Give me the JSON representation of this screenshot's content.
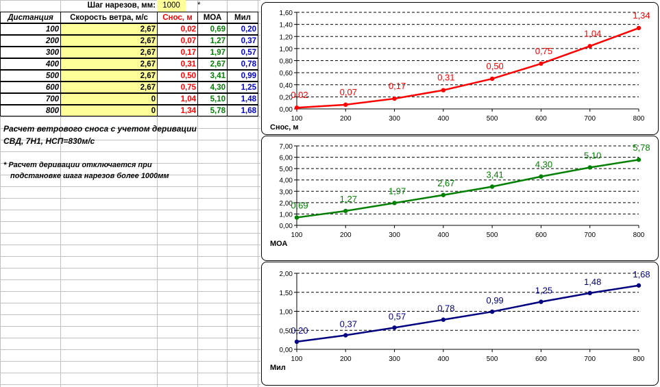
{
  "sheet": {
    "twist_label": "Шаг нарезов, мм:",
    "twist_value": "1000",
    "twist_note_mark": "*",
    "headers": {
      "distance": "Дистанция",
      "wind": "Скорость ветра, м/с",
      "drift": "Снос, м",
      "moa": "МОА",
      "mil": "Мил"
    },
    "rows": [
      {
        "distance": "100",
        "wind": "2,67",
        "drift": "0,02",
        "moa": "0,69",
        "mil": "0,20"
      },
      {
        "distance": "200",
        "wind": "2,67",
        "drift": "0,07",
        "moa": "1,27",
        "mil": "0,37"
      },
      {
        "distance": "300",
        "wind": "2,67",
        "drift": "0,17",
        "moa": "1,97",
        "mil": "0,57"
      },
      {
        "distance": "400",
        "wind": "2,67",
        "drift": "0,31",
        "moa": "2,67",
        "mil": "0,78"
      },
      {
        "distance": "500",
        "wind": "2,67",
        "drift": "0,50",
        "moa": "3,41",
        "mil": "0,99"
      },
      {
        "distance": "600",
        "wind": "2,67",
        "drift": "0,75",
        "moa": "4,30",
        "mil": "1,25"
      },
      {
        "distance": "700",
        "wind": "0",
        "drift": "1,04",
        "moa": "5,10",
        "mil": "1,48"
      },
      {
        "distance": "800",
        "wind": "0",
        "drift": "1,34",
        "moa": "5,78",
        "mil": "1,68"
      }
    ],
    "title_line1": "Расчет ветрового сноса с учетом деривации",
    "title_line2": "СВД, 7Н1, НСП=830м/с",
    "footnote_line1": "* Расчет деривации отключается при",
    "footnote_line2": "подстановке шага нарезов более 1000мм"
  },
  "colors": {
    "drift": "#ff0000",
    "moa": "#008000",
    "mil": "#000080",
    "highlight": "#ffff99"
  },
  "chart_data": [
    {
      "type": "line",
      "x": [
        100,
        200,
        300,
        400,
        500,
        600,
        700,
        800
      ],
      "values": [
        0.02,
        0.07,
        0.17,
        0.31,
        0.5,
        0.75,
        1.04,
        1.34
      ],
      "data_labels": [
        "0,02",
        "0,07",
        "0,17",
        "0,31",
        "0,50",
        "0,75",
        "1,04",
        "1,34"
      ],
      "ylabel": "Снос, м",
      "ylim": [
        0,
        1.6
      ],
      "yticks": [
        0,
        0.2,
        0.4,
        0.6,
        0.8,
        1.0,
        1.2,
        1.4,
        1.6
      ],
      "ytick_labels": [
        "0,00",
        "0,20",
        "0,40",
        "0,60",
        "0,80",
        "1,00",
        "1,20",
        "1,40",
        "1,60"
      ],
      "xtick_labels": [
        "100",
        "200",
        "300",
        "400",
        "500",
        "600",
        "700",
        "800"
      ],
      "grid": true,
      "color": "#ff0000"
    },
    {
      "type": "line",
      "x": [
        100,
        200,
        300,
        400,
        500,
        600,
        700,
        800
      ],
      "values": [
        0.69,
        1.27,
        1.97,
        2.67,
        3.41,
        4.3,
        5.1,
        5.78
      ],
      "data_labels": [
        "0,69",
        "1,27",
        "1,97",
        "2,67",
        "3,41",
        "4,30",
        "5,10",
        "5,78"
      ],
      "ylabel": "МОА",
      "ylim": [
        0,
        7
      ],
      "yticks": [
        0,
        1,
        2,
        3,
        4,
        5,
        6,
        7
      ],
      "ytick_labels": [
        "0,00",
        "1,00",
        "2,00",
        "3,00",
        "4,00",
        "5,00",
        "6,00",
        "7,00"
      ],
      "xtick_labels": [
        "100",
        "200",
        "300",
        "400",
        "500",
        "600",
        "700",
        "800"
      ],
      "grid": true,
      "color": "#008000"
    },
    {
      "type": "line",
      "x": [
        100,
        200,
        300,
        400,
        500,
        600,
        700,
        800
      ],
      "values": [
        0.2,
        0.37,
        0.57,
        0.78,
        0.99,
        1.25,
        1.48,
        1.68
      ],
      "data_labels": [
        "0,20",
        "0,37",
        "0,57",
        "0,78",
        "0,99",
        "1,25",
        "1,48",
        "1,68"
      ],
      "ylabel": "Мил",
      "ylim": [
        0,
        2
      ],
      "yticks": [
        0,
        0.5,
        1.0,
        1.5,
        2.0
      ],
      "ytick_labels": [
        "0,00",
        "0,50",
        "1,00",
        "1,50",
        "2,00"
      ],
      "xtick_labels": [
        "100",
        "200",
        "300",
        "400",
        "500",
        "600",
        "700",
        "800"
      ],
      "grid": true,
      "color": "#000080"
    }
  ]
}
